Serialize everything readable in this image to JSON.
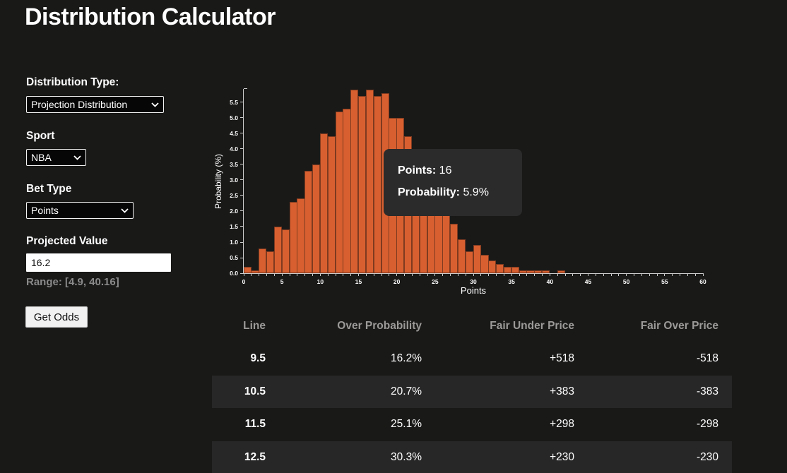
{
  "title": "Distribution Calculator",
  "form": {
    "distribution_type_label": "Distribution Type:",
    "distribution_type_value": "Projection Distribution",
    "sport_label": "Sport",
    "sport_value": "NBA",
    "bet_type_label": "Bet Type",
    "bet_type_value": "Points",
    "projected_value_label": "Projected Value",
    "projected_value": "16.2",
    "range_text": "Range: [4.9, 40.16]",
    "get_odds_label": "Get Odds"
  },
  "tooltip": {
    "points_label": "Points:",
    "points_value": " 16",
    "probability_label": "Probability:",
    "probability_value": " 5.9%"
  },
  "chart_data": {
    "type": "bar",
    "title": "",
    "xlabel": "Points",
    "ylabel": "Probability (%)",
    "x": [
      0,
      1,
      2,
      3,
      4,
      5,
      6,
      7,
      8,
      9,
      10,
      11,
      12,
      13,
      14,
      15,
      16,
      17,
      18,
      19,
      20,
      21,
      22,
      23,
      24,
      25,
      26,
      27,
      28,
      29,
      30,
      31,
      32,
      33,
      34,
      35,
      36,
      37,
      38,
      39,
      40,
      41
    ],
    "values": [
      0.2,
      0.1,
      0.8,
      0.7,
      1.5,
      1.4,
      2.3,
      2.4,
      3.3,
      3.5,
      4.5,
      4.4,
      5.2,
      5.3,
      5.9,
      5.7,
      5.9,
      5.7,
      5.8,
      5.0,
      5.0,
      4.4,
      3.9,
      3.5,
      3.0,
      2.6,
      2.1,
      1.6,
      1.1,
      0.7,
      0.9,
      0.6,
      0.4,
      0.3,
      0.2,
      0.2,
      0.1,
      0.1,
      0.1,
      0.1,
      0,
      0.1
    ],
    "xlim": [
      0,
      60
    ],
    "ylim": [
      0,
      5.93
    ],
    "x_tick_labels": [
      "0",
      "5",
      "10",
      "15",
      "20",
      "25",
      "30",
      "35",
      "40",
      "45",
      "50",
      "55",
      "60"
    ],
    "y_tick_labels": [
      "0.0",
      "0.5",
      "1.0",
      "1.5",
      "2.0",
      "2.5",
      "3.0",
      "3.5",
      "4.0",
      "4.5",
      "5.0",
      "5.5"
    ],
    "bar_color": "#d86030",
    "grid": false,
    "legend": false,
    "hovered_bar_x": 16,
    "hovered_bar_probability": "5.9%"
  },
  "table": {
    "headers": [
      "Line",
      "Over Probability",
      "Fair Under Price",
      "Fair Over Price"
    ],
    "rows": [
      [
        "9.5",
        "16.2%",
        "+518",
        "-518"
      ],
      [
        "10.5",
        "20.7%",
        "+383",
        "-383"
      ],
      [
        "11.5",
        "25.1%",
        "+298",
        "-298"
      ],
      [
        "12.5",
        "30.3%",
        "+230",
        "-230"
      ]
    ]
  },
  "colors": {
    "background": "#191918",
    "bar": "#d86030",
    "bar_border": "#7e3a20",
    "axis": "#cccccc",
    "tooltip_bg": "#2b2b2b",
    "table_stripe": "#272727",
    "table_header_text": "#9c9a98",
    "range_text": "#8a8a8a"
  }
}
